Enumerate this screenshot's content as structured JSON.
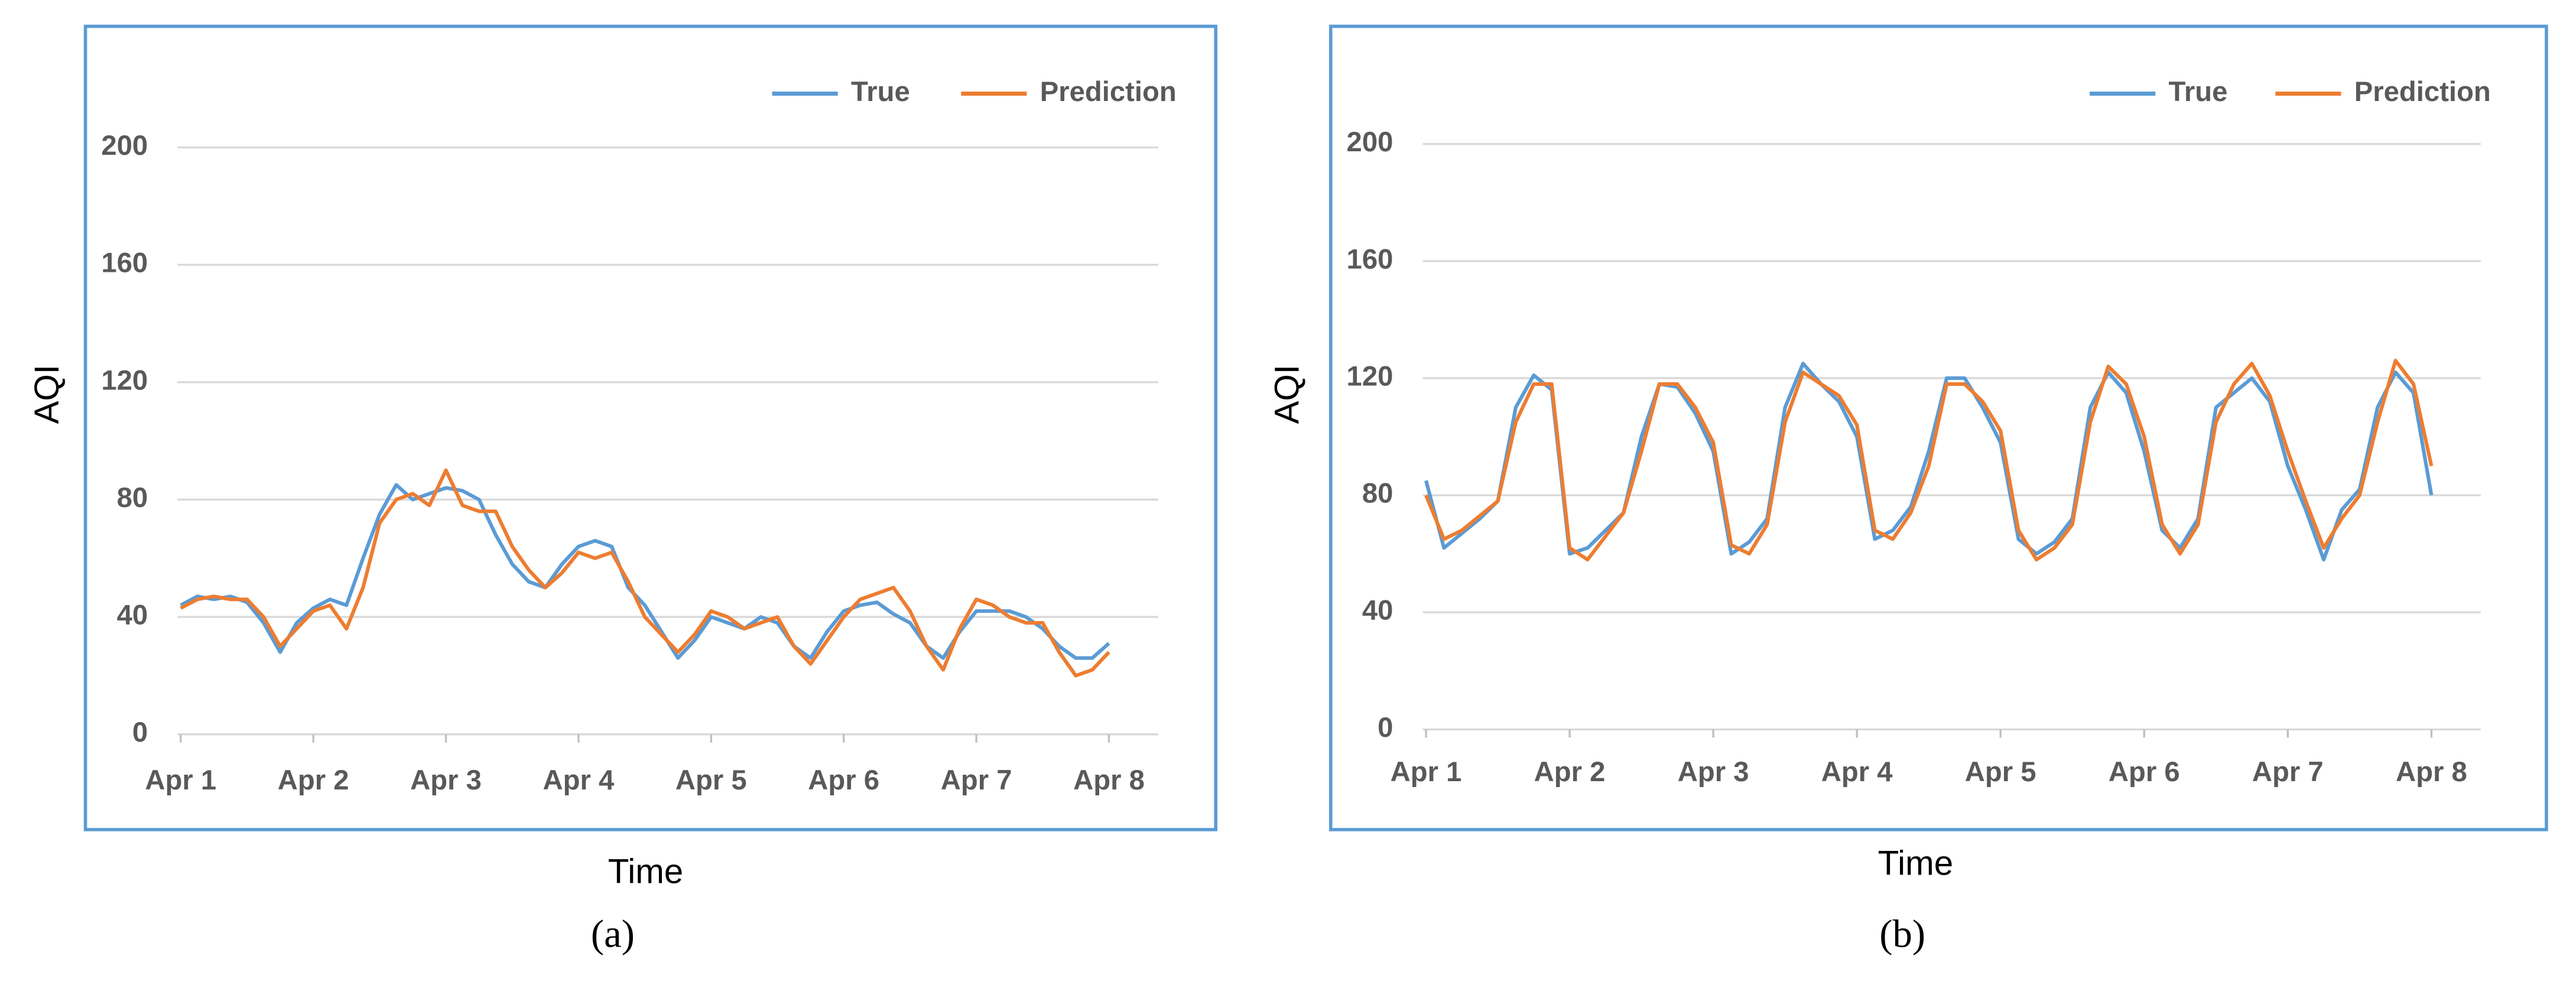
{
  "chart_data": [
    {
      "type": "line",
      "caption": "(a)",
      "x_label": "Time",
      "y_label": "AQI",
      "x": [
        0,
        0.125,
        0.25,
        0.375,
        0.5,
        0.625,
        0.75,
        0.875,
        1,
        1.125,
        1.25,
        1.375,
        1.5,
        1.625,
        1.75,
        1.875,
        2,
        2.125,
        2.25,
        2.375,
        2.5,
        2.625,
        2.75,
        2.875,
        3,
        3.125,
        3.25,
        3.375,
        3.5,
        3.625,
        3.75,
        3.875,
        4,
        4.125,
        4.25,
        4.375,
        4.5,
        4.625,
        4.75,
        4.875,
        5,
        5.125,
        5.25,
        5.375,
        5.5,
        5.625,
        5.75,
        5.875,
        6,
        6.125,
        6.25,
        6.375,
        6.5,
        6.625,
        6.75,
        6.875,
        7
      ],
      "xlim": [
        0,
        7
      ],
      "xticks": [
        {
          "value": 0,
          "label": "Apr 1"
        },
        {
          "value": 1,
          "label": "Apr 2"
        },
        {
          "value": 2,
          "label": "Apr 3"
        },
        {
          "value": 3,
          "label": "Apr 4"
        },
        {
          "value": 4,
          "label": "Apr 5"
        },
        {
          "value": 5,
          "label": "Apr 6"
        },
        {
          "value": 6,
          "label": "Apr 7"
        },
        {
          "value": 7,
          "label": "Apr 8"
        }
      ],
      "ylim": [
        0,
        220
      ],
      "yticks": [
        0,
        40,
        80,
        120,
        160,
        200
      ],
      "grid": true,
      "legend": "upper right",
      "series": [
        {
          "name": "True",
          "color": "#5b9bd5",
          "values": [
            44,
            47,
            46,
            47,
            45,
            38,
            28,
            38,
            43,
            46,
            44,
            60,
            75,
            85,
            80,
            82,
            84,
            83,
            80,
            68,
            58,
            52,
            50,
            58,
            64,
            66,
            64,
            50,
            44,
            35,
            26,
            32,
            40,
            38,
            36,
            40,
            38,
            30,
            26,
            35,
            42,
            44,
            45,
            41,
            38,
            30,
            26,
            35,
            42,
            42,
            42,
            40,
            36,
            30,
            26,
            26,
            31
          ]
        },
        {
          "name": "Prediction",
          "color": "#ed7d31",
          "values": [
            43,
            46,
            47,
            46,
            46,
            40,
            30,
            36,
            42,
            44,
            36,
            50,
            72,
            80,
            82,
            78,
            90,
            78,
            76,
            76,
            64,
            56,
            50,
            55,
            62,
            60,
            62,
            52,
            40,
            34,
            28,
            34,
            42,
            40,
            36,
            38,
            40,
            30,
            24,
            32,
            40,
            46,
            48,
            50,
            42,
            30,
            22,
            36,
            46,
            44,
            40,
            38,
            38,
            28,
            20,
            22,
            28
          ]
        }
      ]
    },
    {
      "type": "line",
      "caption": "(b)",
      "x_label": "Time",
      "y_label": "AQI",
      "x": [
        0,
        0.125,
        0.25,
        0.375,
        0.5,
        0.625,
        0.75,
        0.875,
        1,
        1.125,
        1.25,
        1.375,
        1.5,
        1.625,
        1.75,
        1.875,
        2,
        2.125,
        2.25,
        2.375,
        2.5,
        2.625,
        2.75,
        2.875,
        3,
        3.125,
        3.25,
        3.375,
        3.5,
        3.625,
        3.75,
        3.875,
        4,
        4.125,
        4.25,
        4.375,
        4.5,
        4.625,
        4.75,
        4.875,
        5,
        5.125,
        5.25,
        5.375,
        5.5,
        5.625,
        5.75,
        5.875,
        6,
        6.125,
        6.25,
        6.375,
        6.5,
        6.625,
        6.75,
        6.875,
        7
      ],
      "xlim": [
        0,
        7
      ],
      "xticks": [
        {
          "value": 0,
          "label": "Apr 1"
        },
        {
          "value": 1,
          "label": "Apr 2"
        },
        {
          "value": 2,
          "label": "Apr 3"
        },
        {
          "value": 3,
          "label": "Apr 4"
        },
        {
          "value": 4,
          "label": "Apr 5"
        },
        {
          "value": 5,
          "label": "Apr 6"
        },
        {
          "value": 6,
          "label": "Apr 7"
        },
        {
          "value": 7,
          "label": "Apr 8"
        }
      ],
      "ylim": [
        0,
        220
      ],
      "yticks": [
        0,
        40,
        80,
        120,
        160,
        200
      ],
      "grid": true,
      "legend": "upper right",
      "series": [
        {
          "name": "True",
          "color": "#5b9bd5",
          "values": [
            85,
            62,
            67,
            72,
            78,
            110,
            121,
            116,
            60,
            62,
            68,
            74,
            100,
            118,
            117,
            108,
            95,
            60,
            64,
            72,
            110,
            125,
            118,
            112,
            100,
            65,
            68,
            76,
            95,
            120,
            120,
            110,
            98,
            65,
            60,
            64,
            72,
            110,
            122,
            115,
            95,
            68,
            62,
            72,
            110,
            115,
            120,
            112,
            90,
            75,
            58,
            75,
            82,
            110,
            122,
            115,
            80
          ]
        },
        {
          "name": "Prediction",
          "color": "#ed7d31",
          "values": [
            80,
            65,
            68,
            73,
            78,
            105,
            118,
            118,
            62,
            58,
            66,
            74,
            95,
            118,
            118,
            110,
            98,
            63,
            60,
            70,
            105,
            122,
            118,
            114,
            104,
            68,
            65,
            74,
            90,
            118,
            118,
            112,
            102,
            68,
            58,
            62,
            70,
            105,
            124,
            118,
            100,
            70,
            60,
            70,
            105,
            118,
            125,
            114,
            95,
            78,
            62,
            72,
            80,
            105,
            126,
            118,
            90
          ]
        }
      ]
    }
  ]
}
